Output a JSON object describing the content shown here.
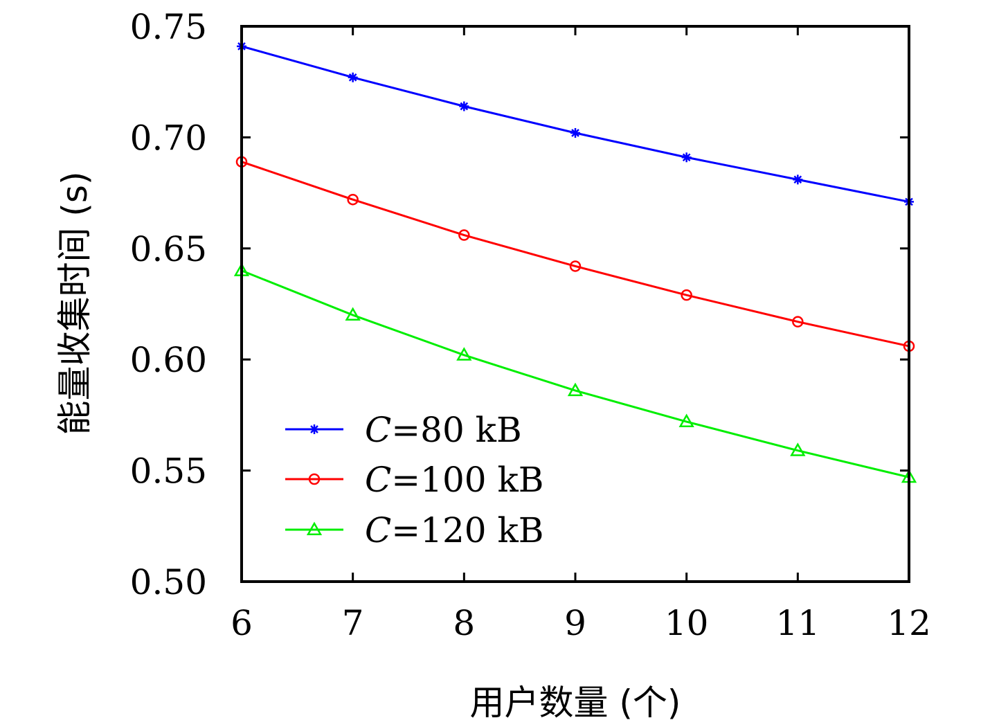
{
  "chart_data": {
    "type": "line",
    "xlabel": "用户数量 (个)",
    "ylabel": "能量收集时间 (s)",
    "xlim": [
      6,
      12
    ],
    "ylim": [
      0.5,
      0.75
    ],
    "x": [
      6,
      7,
      8,
      9,
      10,
      11,
      12
    ],
    "xticks": [
      "6",
      "7",
      "8",
      "9",
      "10",
      "11",
      "12"
    ],
    "yticks": [
      "0.50",
      "0.55",
      "0.60",
      "0.65",
      "0.70",
      "0.75"
    ],
    "grid": false,
    "legend_position": "lower-left",
    "series": [
      {
        "name_var": "C",
        "name_rest": "=80 kB",
        "color": "#0000ff",
        "marker": "asterisk",
        "values": [
          0.741,
          0.727,
          0.714,
          0.702,
          0.691,
          0.681,
          0.671
        ]
      },
      {
        "name_var": "C",
        "name_rest": "=100 kB",
        "color": "#ff0000",
        "marker": "circle",
        "values": [
          0.689,
          0.672,
          0.656,
          0.642,
          0.629,
          0.617,
          0.606
        ]
      },
      {
        "name_var": "C",
        "name_rest": "=120 kB",
        "color": "#00ee00",
        "marker": "triangle",
        "values": [
          0.64,
          0.62,
          0.602,
          0.586,
          0.572,
          0.559,
          0.547
        ]
      }
    ]
  }
}
